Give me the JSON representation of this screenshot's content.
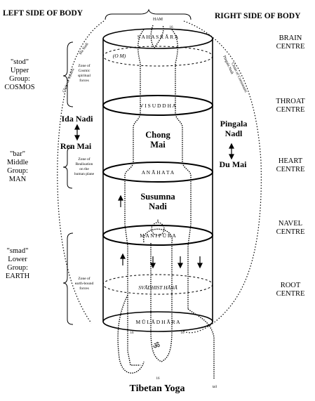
{
  "header": {
    "left_side": "LEFT SIDE  OF BODY",
    "right_side": "RIGHT SIDE OF BODY"
  },
  "centres": {
    "brain": [
      "BRAIN",
      "CENTRE"
    ],
    "throat": [
      "THROAT",
      "CENTRE"
    ],
    "heart": [
      "HEART",
      "CENTRE"
    ],
    "navel": [
      "NAVEL",
      "CENTRE"
    ],
    "root": [
      "ROOT",
      "CENTRE"
    ]
  },
  "groups": {
    "upper": [
      "\"stod\"",
      "Upper",
      "Group:",
      "COSMOS"
    ],
    "middle": [
      "\"bar\"",
      "Middle",
      "Group:",
      "MAN"
    ],
    "lower": [
      "\"smad\"",
      "Lower",
      "Group:",
      "EARTH"
    ]
  },
  "zones": {
    "cosmic": [
      "Zone of",
      "Cosmic",
      "spiritual",
      "forces"
    ],
    "realisation": [
      "Zone of",
      "Realisation",
      "on the",
      "human plane"
    ],
    "earth_bound": [
      "Zone of",
      "earth-bound",
      "forces"
    ]
  },
  "channels": {
    "ida": "Ida Nadi",
    "ren_mai": "Ren Mai",
    "pingala": [
      "Pingala",
      "Nadl"
    ],
    "du_mai": "Du Mai",
    "chong_mai": [
      "Chong",
      "Mai"
    ],
    "susumna": [
      "Susumna",
      "Nadi"
    ]
  },
  "chakras": {
    "sahasrara": "S A H A S R Ā R A",
    "vishuddha": "V I S   U D   D H A",
    "anahata": "A   N   Ā   H   A   T   A",
    "manipura": "M A N I         P Ū R A",
    "svadhisthana": "SVĀDHIST    HĀNĀ",
    "muladhara": "M Ū L Ā D      H Ā R A",
    "om": "(O M)",
    "ham": "HAM",
    "bija_lower": "ॐ"
  },
  "numbers": {
    "top": "16",
    "navel_top": "8",
    "bottom_mid": "16",
    "bottom_left": "16",
    "bottom_right": "16"
  },
  "labels": {
    "left_arc": "Chain of Vowels",
    "left_arc_2": "Ida Nadi",
    "right_arc": "Pingala Nadi",
    "right_arc_2": "Chain of Consonants",
    "tail": "tail"
  },
  "caption": "Tibetan Yoga"
}
